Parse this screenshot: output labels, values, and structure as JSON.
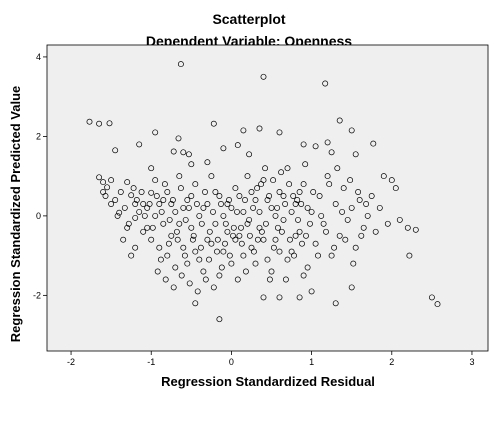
{
  "chart_data": {
    "type": "scatter",
    "title": "Scatterplot",
    "subtitle": "Dependent Variable: Openness",
    "xlabel": "Regression Standardized Residual",
    "ylabel": "Regression Standardized Predicted Value",
    "xlim": [
      -2.3,
      3.2
    ],
    "ylim": [
      -3.4,
      4.3
    ],
    "xticks": [
      -2,
      -1,
      0,
      1,
      2,
      3
    ],
    "yticks": [
      -2,
      0,
      2,
      4
    ],
    "xtick_labels": [
      "-2",
      "-1",
      "0",
      "1",
      "2",
      "3"
    ],
    "ytick_labels": [
      "-2",
      "0",
      "2",
      "4"
    ],
    "grid": false,
    "legend": "none",
    "colors": {
      "plot_background": "#efefef",
      "marker": "#000000"
    },
    "series": [
      {
        "points": [
          [
            -1.77,
            2.37
          ],
          [
            -1.65,
            2.32
          ],
          [
            -1.52,
            2.33
          ],
          [
            -0.63,
            3.82
          ],
          [
            0.4,
            3.5
          ],
          [
            1.17,
            3.33
          ],
          [
            1.35,
            2.4
          ],
          [
            1.5,
            2.15
          ],
          [
            1.77,
            1.82
          ],
          [
            1.2,
            1.85
          ],
          [
            1.05,
            1.75
          ],
          [
            0.6,
            2.1
          ],
          [
            0.35,
            2.2
          ],
          [
            0.15,
            2.15
          ],
          [
            -0.22,
            2.32
          ],
          [
            -0.95,
            2.1
          ],
          [
            -1.45,
            1.65
          ],
          [
            -1.15,
            1.8
          ],
          [
            -0.66,
            1.95
          ],
          [
            -0.72,
            1.62
          ],
          [
            -0.53,
            1.55
          ],
          [
            -0.1,
            1.7
          ],
          [
            0.08,
            1.78
          ],
          [
            0.9,
            1.8
          ],
          [
            1.25,
            1.6
          ],
          [
            1.55,
            1.55
          ],
          [
            0.22,
            1.55
          ],
          [
            -0.5,
            1.3
          ],
          [
            -0.3,
            1.35
          ],
          [
            -0.6,
            1.6
          ],
          [
            -1.65,
            0.97
          ],
          [
            -1.6,
            0.85
          ],
          [
            -1.57,
            0.5
          ],
          [
            -1.55,
            0.72
          ],
          [
            -1.5,
            0.3
          ],
          [
            -1.4,
            0.08
          ],
          [
            -1.3,
            0.85
          ],
          [
            -1.25,
            0.52
          ],
          [
            -1.2,
            -0.05
          ],
          [
            -1.1,
            0.3
          ],
          [
            -1.05,
            -0.3
          ],
          [
            -1.0,
            0.58
          ],
          [
            -1.0,
            1.2
          ],
          [
            -0.95,
            0.9
          ],
          [
            -0.9,
            0.3
          ],
          [
            -0.85,
            -0.2
          ],
          [
            -0.8,
            0.6
          ],
          [
            -0.75,
            -0.5
          ],
          [
            -0.7,
            0.1
          ],
          [
            -0.65,
            1.0
          ],
          [
            -0.6,
            -0.8
          ],
          [
            -0.55,
            0.4
          ],
          [
            -0.5,
            -0.3
          ],
          [
            -0.45,
            0.8
          ],
          [
            -0.4,
            -1.1
          ],
          [
            -0.35,
            0.2
          ],
          [
            -0.3,
            -0.6
          ],
          [
            -0.25,
            1.0
          ],
          [
            -0.2,
            -0.2
          ],
          [
            -0.15,
            0.5
          ],
          [
            -0.1,
            -0.9
          ],
          [
            -0.05,
            0.3
          ],
          [
            0.0,
            -1.2
          ],
          [
            0.05,
            0.7
          ],
          [
            0.1,
            -0.5
          ],
          [
            0.15,
            0.1
          ],
          [
            0.2,
            1.0
          ],
          [
            0.25,
            -0.8
          ],
          [
            0.3,
            0.4
          ],
          [
            0.35,
            -0.3
          ],
          [
            0.4,
            0.9
          ],
          [
            0.45,
            -1.1
          ],
          [
            0.5,
            0.2
          ],
          [
            0.55,
            -0.6
          ],
          [
            0.6,
            0.6
          ],
          [
            0.65,
            -0.1
          ],
          [
            0.7,
            1.2
          ],
          [
            0.75,
            -0.9
          ],
          [
            0.8,
            0.3
          ],
          [
            0.85,
            -0.4
          ],
          [
            0.9,
            0.8
          ],
          [
            0.95,
            -1.3
          ],
          [
            1.0,
            0.1
          ],
          [
            1.05,
            -0.7
          ],
          [
            1.1,
            0.5
          ],
          [
            1.15,
            -0.2
          ],
          [
            1.2,
            1.0
          ],
          [
            1.25,
            -1.0
          ],
          [
            1.3,
            0.3
          ],
          [
            1.35,
            -0.5
          ],
          [
            1.4,
            0.7
          ],
          [
            1.45,
            -0.1
          ],
          [
            1.5,
            0.2
          ],
          [
            1.55,
            -0.8
          ],
          [
            1.6,
            0.4
          ],
          [
            1.65,
            -0.3
          ],
          [
            1.7,
            0.0
          ],
          [
            1.75,
            0.5
          ],
          [
            1.8,
            -0.4
          ],
          [
            1.85,
            0.2
          ],
          [
            1.9,
            1.0
          ],
          [
            1.95,
            -0.2
          ],
          [
            2.0,
            0.9
          ],
          [
            2.05,
            0.7
          ],
          [
            2.1,
            -0.1
          ],
          [
            2.2,
            -0.3
          ],
          [
            2.3,
            -0.35
          ],
          [
            2.22,
            -1.0
          ],
          [
            2.5,
            -2.05
          ],
          [
            2.57,
            -2.22
          ],
          [
            -0.15,
            -2.6
          ],
          [
            -0.45,
            -2.2
          ],
          [
            0.4,
            -2.05
          ],
          [
            0.6,
            -2.05
          ],
          [
            0.85,
            -2.05
          ],
          [
            1.0,
            -1.9
          ],
          [
            1.3,
            -2.2
          ],
          [
            1.5,
            -1.8
          ],
          [
            -1.2,
            0.3
          ],
          [
            -1.15,
            0.1
          ],
          [
            -1.1,
            -0.4
          ],
          [
            -1.05,
            0.2
          ],
          [
            -1.0,
            -0.6
          ],
          [
            -0.95,
            0.0
          ],
          [
            -0.9,
            -0.8
          ],
          [
            -0.85,
            0.4
          ],
          [
            -0.8,
            -1.0
          ],
          [
            -0.75,
            0.3
          ],
          [
            -0.7,
            -1.3
          ],
          [
            -0.65,
            -0.2
          ],
          [
            -0.6,
            0.2
          ],
          [
            -0.55,
            -1.2
          ],
          [
            -0.5,
            0.5
          ],
          [
            -0.45,
            -0.9
          ],
          [
            -0.4,
            0.0
          ],
          [
            -0.35,
            -1.4
          ],
          [
            -0.3,
            0.3
          ],
          [
            -0.25,
            -0.7
          ],
          [
            -0.2,
            0.6
          ],
          [
            -0.15,
            -1.5
          ],
          [
            -0.1,
            0.0
          ],
          [
            -0.05,
            -0.4
          ],
          [
            0.0,
            0.2
          ],
          [
            0.05,
            -0.6
          ],
          [
            0.1,
            0.5
          ],
          [
            0.15,
            -1.0
          ],
          [
            0.2,
            -0.2
          ],
          [
            0.25,
            0.6
          ],
          [
            0.3,
            -1.2
          ],
          [
            0.35,
            0.1
          ],
          [
            0.4,
            -0.6
          ],
          [
            0.45,
            0.4
          ],
          [
            0.5,
            -1.4
          ],
          [
            0.55,
            0.0
          ],
          [
            0.6,
            -0.9
          ],
          [
            0.65,
            0.5
          ],
          [
            0.7,
            -1.1
          ],
          [
            0.75,
            0.1
          ],
          [
            0.8,
            -0.5
          ],
          [
            0.85,
            0.6
          ],
          [
            0.9,
            -1.5
          ],
          [
            0.95,
            0.2
          ],
          [
            -1.35,
            -0.6
          ],
          [
            -1.3,
            -0.3
          ],
          [
            -1.25,
            -1.0
          ],
          [
            -1.2,
            -0.8
          ],
          [
            -0.92,
            -1.4
          ],
          [
            -0.88,
            -1.1
          ],
          [
            -0.82,
            -1.6
          ],
          [
            -0.78,
            -0.7
          ],
          [
            -0.72,
            -1.8
          ],
          [
            -0.68,
            -0.4
          ],
          [
            -0.62,
            -1.5
          ],
          [
            -0.58,
            -1.0
          ],
          [
            -0.52,
            -1.7
          ],
          [
            -0.48,
            -0.6
          ],
          [
            -0.42,
            -1.9
          ],
          [
            -0.38,
            -0.8
          ],
          [
            -0.32,
            -1.6
          ],
          [
            -0.28,
            -1.1
          ],
          [
            -0.22,
            -1.8
          ],
          [
            -0.18,
            -0.9
          ],
          [
            -0.12,
            -1.3
          ],
          [
            -0.08,
            -0.7
          ],
          [
            -0.02,
            -1.0
          ],
          [
            0.02,
            -0.5
          ],
          [
            0.08,
            -1.6
          ],
          [
            0.12,
            -0.3
          ],
          [
            0.18,
            -1.4
          ],
          [
            0.22,
            -0.1
          ],
          [
            0.28,
            -0.9
          ],
          [
            0.32,
            0.7
          ],
          [
            0.38,
            -0.4
          ],
          [
            0.42,
            1.2
          ],
          [
            0.48,
            -1.6
          ],
          [
            0.52,
            0.9
          ],
          [
            0.58,
            -0.3
          ],
          [
            0.62,
            1.1
          ],
          [
            0.68,
            -1.6
          ],
          [
            0.72,
            0.8
          ],
          [
            0.78,
            -1.0
          ],
          [
            0.82,
            0.4
          ],
          [
            0.88,
            -0.7
          ],
          [
            0.92,
            1.3
          ],
          [
            0.98,
            -0.2
          ],
          [
            1.02,
            0.6
          ],
          [
            1.08,
            -1.0
          ],
          [
            1.12,
            0.0
          ],
          [
            1.18,
            -0.4
          ],
          [
            1.22,
            0.8
          ],
          [
            1.28,
            -0.8
          ],
          [
            1.32,
            1.2
          ],
          [
            1.38,
            0.1
          ],
          [
            1.42,
            -0.6
          ],
          [
            1.48,
            0.9
          ],
          [
            1.52,
            -1.2
          ],
          [
            1.58,
            0.6
          ],
          [
            1.62,
            -0.5
          ],
          [
            1.68,
            0.3
          ],
          [
            -1.6,
            0.6
          ],
          [
            -1.5,
            0.9
          ],
          [
            -1.45,
            0.4
          ],
          [
            -1.42,
            0.0
          ],
          [
            -1.38,
            0.6
          ],
          [
            -1.33,
            0.2
          ],
          [
            -1.28,
            -0.2
          ],
          [
            -1.22,
            0.7
          ],
          [
            -1.18,
            0.4
          ],
          [
            -1.12,
            0.6
          ],
          [
            -1.08,
            0.0
          ],
          [
            -1.02,
            0.3
          ],
          [
            -0.98,
            -0.3
          ],
          [
            -0.93,
            0.5
          ],
          [
            -0.87,
            0.1
          ],
          [
            -0.83,
            0.8
          ],
          [
            -0.77,
            -0.1
          ],
          [
            -0.73,
            0.4
          ],
          [
            -0.67,
            -0.6
          ],
          [
            -0.63,
            0.7
          ],
          [
            -0.57,
            -0.1
          ],
          [
            -0.53,
            0.2
          ],
          [
            -0.47,
            -0.5
          ],
          [
            -0.43,
            0.3
          ],
          [
            -0.37,
            -0.2
          ],
          [
            -0.33,
            0.6
          ],
          [
            -0.27,
            -0.4
          ],
          [
            -0.23,
            0.1
          ],
          [
            -0.17,
            -0.6
          ],
          [
            -0.13,
            0.3
          ],
          [
            -0.07,
            -0.2
          ],
          [
            -0.03,
            0.4
          ],
          [
            0.03,
            -0.3
          ],
          [
            0.07,
            0.1
          ],
          [
            0.13,
            -0.7
          ],
          [
            0.17,
            0.4
          ],
          [
            0.23,
            -0.5
          ],
          [
            0.27,
            0.2
          ],
          [
            0.33,
            -0.6
          ],
          [
            0.37,
            0.8
          ],
          [
            0.43,
            -0.2
          ],
          [
            0.47,
            0.5
          ],
          [
            0.53,
            -0.8
          ],
          [
            0.57,
            0.2
          ],
          [
            0.63,
            -0.4
          ],
          [
            0.67,
            0.3
          ],
          [
            0.73,
            -0.6
          ],
          [
            0.77,
            0.5
          ],
          [
            0.83,
            -0.1
          ],
          [
            0.87,
            0.3
          ],
          [
            0.93,
            -0.5
          ]
        ]
      }
    ]
  }
}
